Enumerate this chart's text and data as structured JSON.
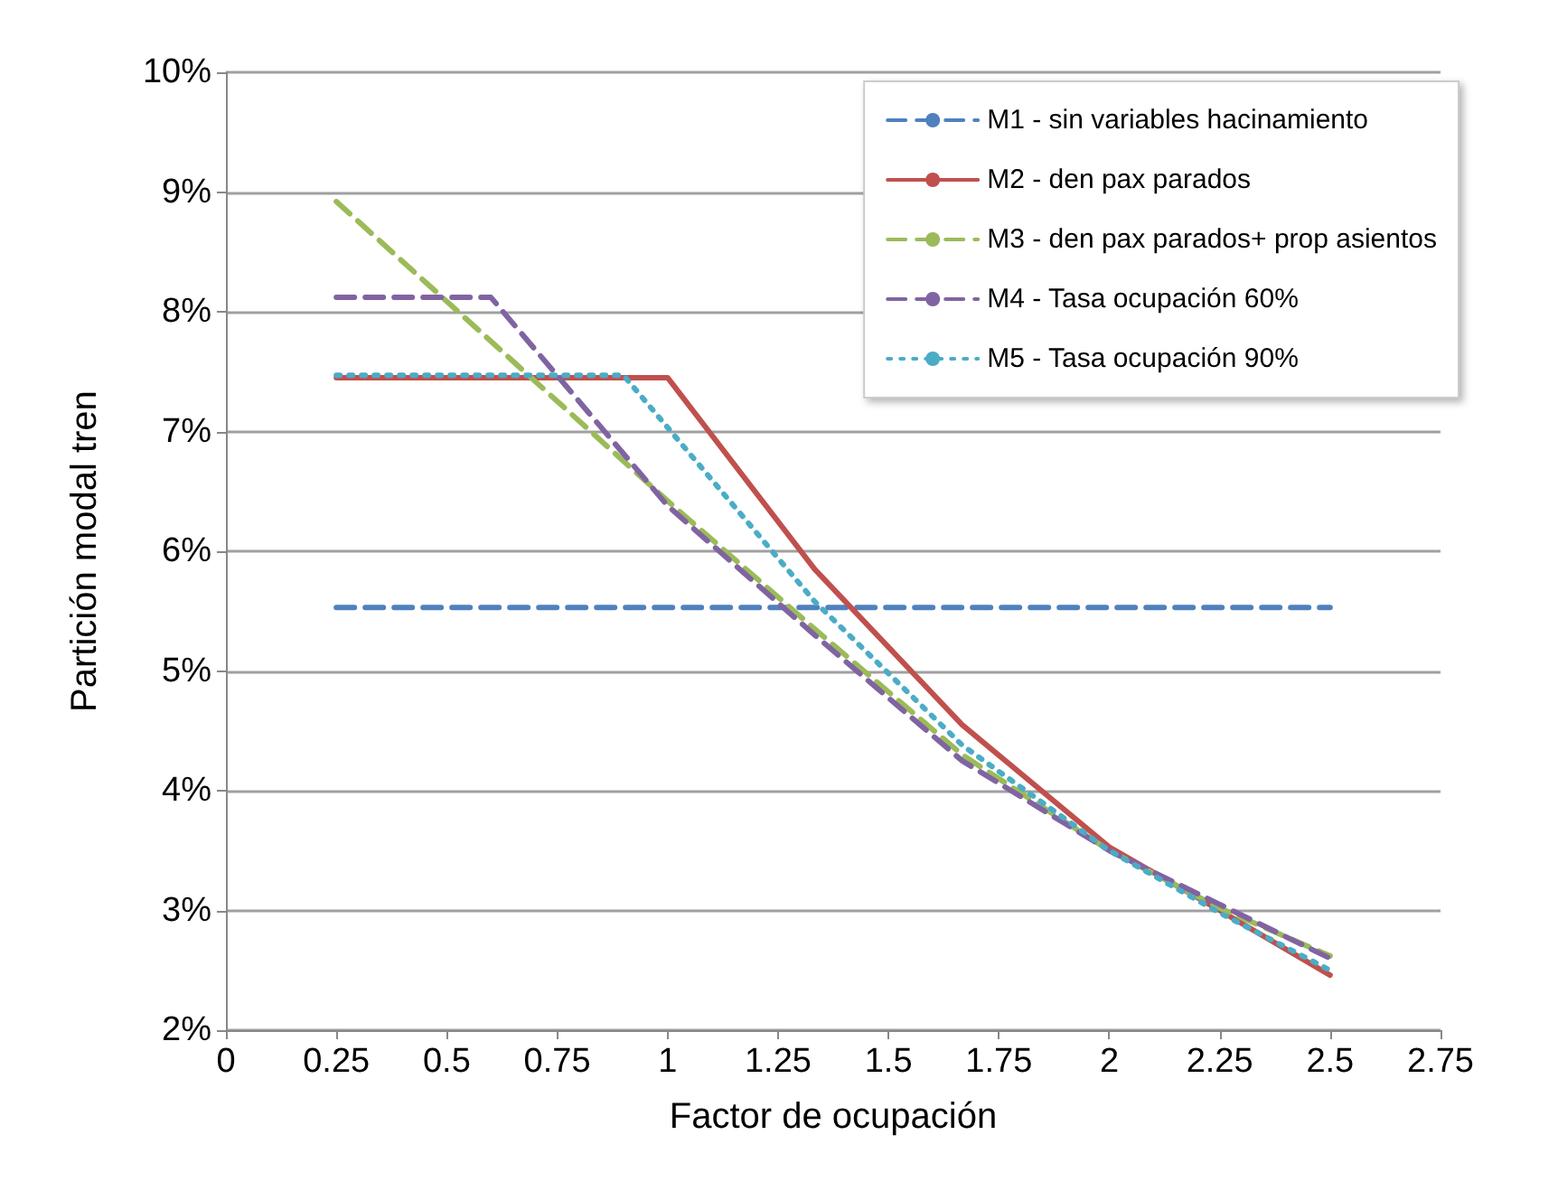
{
  "chart_data": {
    "type": "line",
    "xlabel": "Factor de ocupación",
    "ylabel": "Partición modal tren",
    "xlim": [
      0,
      2.75
    ],
    "xticks": [
      0,
      0.25,
      0.5,
      0.75,
      1,
      1.25,
      1.5,
      1.75,
      2,
      2.25,
      2.5,
      2.75
    ],
    "ylim": [
      2,
      10
    ],
    "yticks": [
      {
        "value": 2,
        "label": "2%"
      },
      {
        "value": 3,
        "label": "3%"
      },
      {
        "value": 4,
        "label": "4%"
      },
      {
        "value": 5,
        "label": "5%"
      },
      {
        "value": 6,
        "label": "6%"
      },
      {
        "value": 7,
        "label": "7%"
      },
      {
        "value": 8,
        "label": "8%"
      },
      {
        "value": 9,
        "label": "9%"
      },
      {
        "value": 10,
        "label": "10%"
      }
    ],
    "grid": "y",
    "legend": "top right",
    "marker": "none",
    "series": [
      {
        "name": "M1 - sin variables hacinamiento",
        "color": "#4f81bd",
        "line_style": "dashed",
        "x": [
          0.25,
          2.5
        ],
        "values": [
          5.53,
          5.53
        ]
      },
      {
        "name": "M2 - den pax parados",
        "color": "#c0504d",
        "line_style": "solid",
        "x": [
          0.25,
          1,
          1.333,
          1.667,
          2,
          2.25,
          2.5
        ],
        "values": [
          7.45,
          7.45,
          5.85,
          4.55,
          3.53,
          3.0,
          2.46
        ]
      },
      {
        "name": "M3 - den pax parados+ prop asientos",
        "color": "#9bbb59",
        "line_style": "dashed",
        "x": [
          0.25,
          1,
          1.333,
          1.667,
          2,
          2.25,
          2.5
        ],
        "values": [
          8.92,
          6.42,
          5.35,
          4.3,
          3.5,
          3.02,
          2.62
        ]
      },
      {
        "name": "M4 - Tasa ocupación 60%",
        "color": "#8064a2",
        "line_style": "dashed",
        "x": [
          0.25,
          0.6,
          1,
          1.333,
          1.667,
          2,
          2.25,
          2.5
        ],
        "values": [
          8.12,
          8.12,
          6.38,
          5.3,
          4.25,
          3.5,
          3.05,
          2.6
        ]
      },
      {
        "name": "M5 - Tasa ocupación 90%",
        "color": "#4bacc6",
        "line_style": "dotted",
        "x": [
          0.25,
          0.9,
          1.333,
          1.667,
          2,
          2.25,
          2.5
        ],
        "values": [
          7.47,
          7.47,
          5.58,
          4.38,
          3.5,
          2.98,
          2.5
        ]
      }
    ]
  }
}
